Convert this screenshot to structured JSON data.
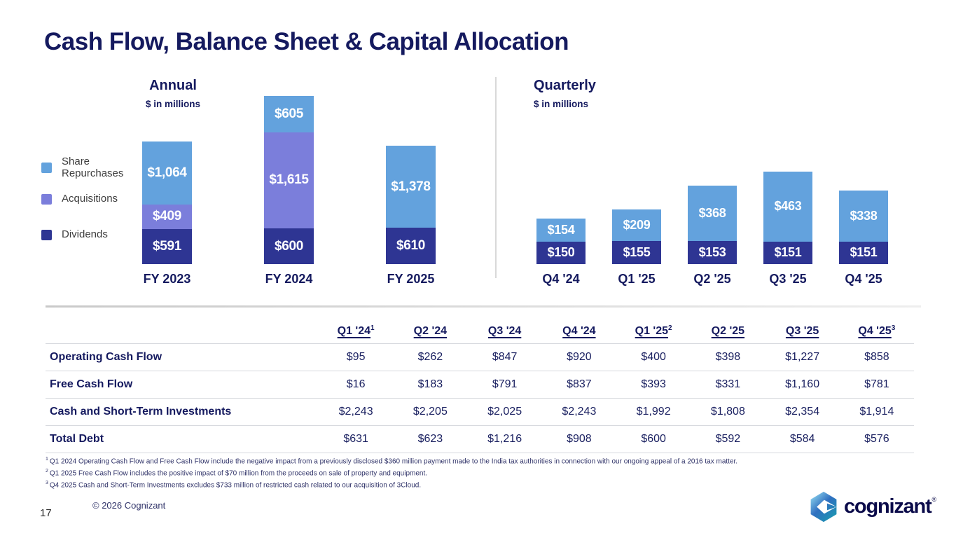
{
  "title": "Cash Flow, Balance Sheet & Capital Allocation",
  "colors": {
    "text_navy": "#151a5f",
    "bar_light_blue": "#63a2dd",
    "bar_purple": "#7b7edb",
    "bar_dark_navy": "#2e3593",
    "legend_text": "#3d3d3d",
    "grid_line_gray": "#d7d9de"
  },
  "legend": [
    {
      "label": "Share Repurchases",
      "color": "#63a2dd"
    },
    {
      "label": "Acquisitions",
      "color": "#7b7edb"
    },
    {
      "label": "Dividends",
      "color": "#2e3593"
    }
  ],
  "chart_data": [
    {
      "type": "bar",
      "stacked": true,
      "title": "Annual",
      "subtitle": "$ in millions",
      "categories": [
        "FY 2023",
        "FY 2024",
        "FY 2025"
      ],
      "series": [
        {
          "name": "Dividends",
          "color": "#2e3593",
          "values": [
            591,
            600,
            610
          ]
        },
        {
          "name": "Acquisitions",
          "color": "#7b7edb",
          "values": [
            409,
            1615,
            0
          ]
        },
        {
          "name": "Share Repurchases",
          "color": "#63a2dd",
          "values": [
            1064,
            605,
            1378
          ]
        }
      ],
      "legend_position": "left",
      "grid": false
    },
    {
      "type": "bar",
      "stacked": true,
      "title": "Quarterly",
      "subtitle": "$ in millions",
      "categories": [
        "Q4 '24",
        "Q1 '25",
        "Q2 '25",
        "Q3 '25",
        "Q4 '25"
      ],
      "series": [
        {
          "name": "Dividends",
          "color": "#2e3593",
          "values": [
            150,
            155,
            153,
            151,
            151
          ]
        },
        {
          "name": "Share Repurchases",
          "color": "#63a2dd",
          "values": [
            154,
            209,
            368,
            463,
            338
          ]
        }
      ],
      "legend_position": "shared-left",
      "grid": false
    }
  ],
  "table": {
    "headers": [
      {
        "label": "Q1 '24",
        "sup": "1"
      },
      {
        "label": "Q2 '24",
        "sup": ""
      },
      {
        "label": "Q3 '24",
        "sup": ""
      },
      {
        "label": "Q4 '24",
        "sup": ""
      },
      {
        "label": "Q1 '25",
        "sup": "2"
      },
      {
        "label": "Q2 '25",
        "sup": ""
      },
      {
        "label": "Q3 '25",
        "sup": ""
      },
      {
        "label": "Q4 '25",
        "sup": "3"
      }
    ],
    "rows": [
      {
        "label": "Operating Cash Flow",
        "values": [
          "$95",
          "$262",
          "$847",
          "$920",
          "$400",
          "$398",
          "$1,227",
          "$858"
        ]
      },
      {
        "label": "Free Cash Flow",
        "values": [
          "$16",
          "$183",
          "$791",
          "$837",
          "$393",
          "$331",
          "$1,160",
          "$781"
        ]
      },
      {
        "label": "Cash and Short-Term Investments",
        "values": [
          "$2,243",
          "$2,205",
          "$2,025",
          "$2,243",
          "$1,992",
          "$1,808",
          "$2,354",
          "$1,914"
        ]
      },
      {
        "label": "Total Debt",
        "values": [
          "$631",
          "$623",
          "$1,216",
          "$908",
          "$600",
          "$592",
          "$584",
          "$576"
        ]
      }
    ]
  },
  "footnotes": [
    {
      "sup": "1",
      "text": "Q1 2024 Operating Cash Flow and Free Cash Flow include the negative impact from a previously disclosed $360 million payment made to the India tax authorities in connection with our ongoing appeal of a 2016 tax matter."
    },
    {
      "sup": "2",
      "text": "Q1 2025 Free Cash Flow includes the positive impact of $70 million from the proceeds on sale of property and equipment."
    },
    {
      "sup": "3",
      "text": "Q4 2025 Cash and Short-Term Investments excludes $733 million of restricted cash related to our acquisition of 3Cloud."
    }
  ],
  "footer": {
    "page_number": "17",
    "copyright": "© 2026 Cognizant",
    "logo_text": "cognizant",
    "logo_reg_mark": "®"
  }
}
